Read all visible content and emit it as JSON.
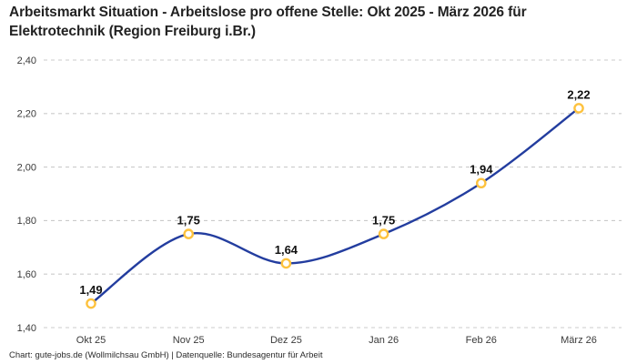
{
  "header": {
    "title": "Arbeitsmarkt Situation - Arbeitslose pro offene Stelle: Okt 2025 - März 2026 für Elektrotechnik (Region Freiburg i.Br.)"
  },
  "footer": {
    "credit": "Chart: gute-jobs.de (Wollmilchsau GmbH) | Datenquelle: Bundesagentur für Arbeit"
  },
  "colors": {
    "line": "#233d9f",
    "marker_ring": "#fdc23e",
    "marker_fill": "#ffffff",
    "grid": "#cbcbcb",
    "axis_text": "#3a3a3a",
    "data_label_text": "#111111",
    "title_text": "#222222"
  },
  "chart_data": {
    "type": "line",
    "title": "Arbeitsmarkt Situation - Arbeitslose pro offene Stelle: Okt 2025 - März 2026 für Elektrotechnik (Region Freiburg i.Br.)",
    "categories": [
      "Okt 25",
      "Nov 25",
      "Dez 25",
      "Jan 26",
      "Feb 26",
      "März 26"
    ],
    "values": [
      1.49,
      1.75,
      1.64,
      1.75,
      1.94,
      2.22
    ],
    "value_labels": [
      "1,49",
      "1,75",
      "1,64",
      "1,75",
      "1,94",
      "2,22"
    ],
    "xlabel": "",
    "ylabel": "",
    "ylim": [
      1.4,
      2.4
    ],
    "yticks": [
      1.4,
      1.6,
      1.8,
      2.0,
      2.2,
      2.4
    ],
    "ytick_labels": [
      "1,40",
      "1,60",
      "1,80",
      "2,00",
      "2,20",
      "2,40"
    ],
    "grid": true,
    "grid_style": "dashed",
    "curve": "smooth",
    "legend": false,
    "source_note": "Chart: gute-jobs.de (Wollmilchsau GmbH) | Datenquelle: Bundesagentur für Arbeit"
  }
}
